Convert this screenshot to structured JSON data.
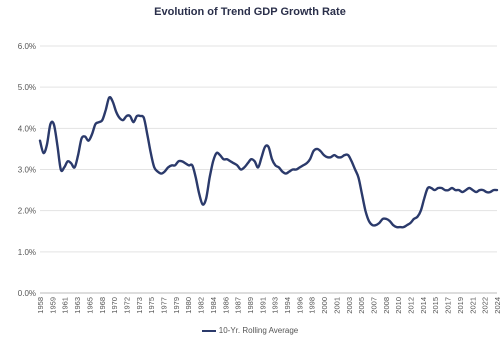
{
  "chart_data": {
    "type": "line",
    "title": "Evolution of Trend GDP Growth Rate",
    "xlabel": "",
    "ylabel": "",
    "ylim": [
      0,
      6
    ],
    "yticks": [
      "0.0%",
      "1.0%",
      "2.0%",
      "3.0%",
      "4.0%",
      "5.0%",
      "6.0%"
    ],
    "xtick_labels": [
      "1958",
      "1959",
      "1961",
      "1963",
      "1965",
      "1968",
      "1970",
      "1972",
      "1973",
      "1975",
      "1977",
      "1979",
      "1980",
      "1982",
      "1984",
      "1986",
      "1987",
      "1989",
      "1991",
      "1993",
      "1994",
      "1996",
      "1998",
      "2000",
      "2001",
      "2003",
      "2005",
      "2007",
      "2008",
      "2010",
      "2012",
      "2014",
      "2015",
      "2017",
      "2019",
      "2021",
      "2022",
      "2024"
    ],
    "grid": true,
    "legend": "bottom",
    "series": [
      {
        "name": "10-Yr. Rolling Average",
        "color": "#2b3a6b",
        "x": [
          1958.0,
          1958.5,
          1959.0,
          1959.5,
          1960.0,
          1960.5,
          1961.0,
          1961.5,
          1962.0,
          1962.5,
          1963.0,
          1963.5,
          1964.0,
          1964.5,
          1965.0,
          1965.5,
          1966.0,
          1966.5,
          1967.0,
          1967.5,
          1968.0,
          1968.5,
          1969.0,
          1969.5,
          1970.0,
          1970.5,
          1971.0,
          1971.5,
          1972.0,
          1972.5,
          1973.0,
          1973.5,
          1974.0,
          1974.5,
          1975.0,
          1975.5,
          1976.0,
          1976.5,
          1977.0,
          1977.5,
          1978.0,
          1978.5,
          1979.0,
          1979.5,
          1980.0,
          1980.5,
          1981.0,
          1981.5,
          1982.0,
          1982.5,
          1983.0,
          1983.5,
          1984.0,
          1984.5,
          1985.0,
          1985.5,
          1986.0,
          1986.5,
          1987.0,
          1987.5,
          1988.0,
          1988.5,
          1989.0,
          1989.5,
          1990.0,
          1990.5,
          1991.0,
          1991.5,
          1992.0,
          1992.5,
          1993.0,
          1993.5,
          1994.0,
          1994.5,
          1995.0,
          1995.5,
          1996.0,
          1996.5,
          1997.0,
          1997.5,
          1998.0,
          1998.5,
          1999.0,
          1999.5,
          2000.0,
          2000.5,
          2001.0,
          2001.5,
          2002.0,
          2002.5,
          2003.0,
          2003.5,
          2004.0,
          2004.5,
          2005.0,
          2005.5,
          2006.0,
          2006.5,
          2007.0,
          2007.5,
          2008.0,
          2008.5,
          2009.0,
          2009.5,
          2010.0,
          2010.5,
          2011.0,
          2011.5,
          2012.0,
          2012.5,
          2013.0,
          2013.5,
          2014.0,
          2014.5,
          2015.0,
          2015.5,
          2016.0,
          2016.5,
          2017.0,
          2017.5,
          2018.0,
          2018.5,
          2019.0,
          2019.5,
          2020.0,
          2020.5,
          2021.0,
          2021.5,
          2022.0,
          2022.5,
          2023.0,
          2023.5,
          2024.0
        ],
        "values": [
          3.7,
          3.4,
          3.6,
          4.1,
          4.1,
          3.6,
          3.0,
          3.05,
          3.2,
          3.15,
          3.05,
          3.35,
          3.75,
          3.8,
          3.7,
          3.85,
          4.1,
          4.15,
          4.2,
          4.45,
          4.75,
          4.65,
          4.4,
          4.25,
          4.2,
          4.3,
          4.3,
          4.15,
          4.3,
          4.3,
          4.25,
          3.85,
          3.4,
          3.05,
          2.95,
          2.9,
          2.95,
          3.05,
          3.1,
          3.1,
          3.2,
          3.2,
          3.15,
          3.1,
          3.1,
          2.8,
          2.4,
          2.15,
          2.3,
          2.8,
          3.2,
          3.4,
          3.35,
          3.25,
          3.25,
          3.2,
          3.15,
          3.1,
          3.0,
          3.05,
          3.15,
          3.25,
          3.2,
          3.05,
          3.3,
          3.55,
          3.55,
          3.25,
          3.1,
          3.05,
          2.95,
          2.9,
          2.95,
          3.0,
          3.0,
          3.05,
          3.1,
          3.15,
          3.25,
          3.45,
          3.5,
          3.45,
          3.35,
          3.3,
          3.3,
          3.35,
          3.3,
          3.3,
          3.35,
          3.35,
          3.2,
          3.0,
          2.8,
          2.4,
          2.0,
          1.75,
          1.65,
          1.65,
          1.7,
          1.8,
          1.8,
          1.75,
          1.65,
          1.6,
          1.6,
          1.6,
          1.65,
          1.7,
          1.8,
          1.85,
          2.0,
          2.3,
          2.55,
          2.55,
          2.5,
          2.55,
          2.55,
          2.5,
          2.5,
          2.55,
          2.5,
          2.5,
          2.45,
          2.5,
          2.55,
          2.5,
          2.45,
          2.5,
          2.5,
          2.45,
          2.45,
          2.5,
          2.5
        ]
      }
    ]
  }
}
